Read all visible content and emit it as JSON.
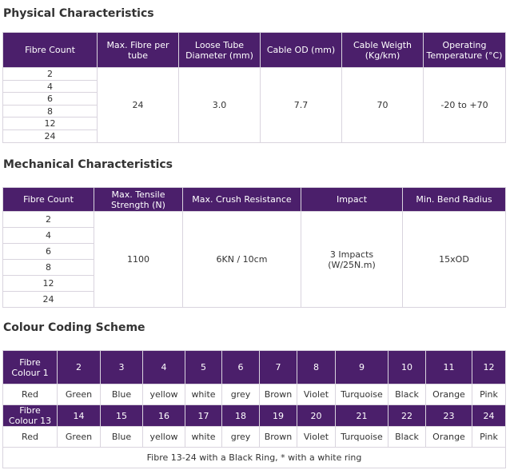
{
  "physical": {
    "title": "Physical Characteristics",
    "headers": [
      "Fibre Count",
      "Max. Fibre per tube",
      "Loose Tube Diameter (mm)",
      "Cable OD (mm)",
      "Cable Weigth (Kg/km)",
      "Operating Temperature (°C)"
    ],
    "fibre_counts": [
      "2",
      "4",
      "6",
      "8",
      "12",
      "24"
    ],
    "max_fibre_per_tube": "24",
    "loose_tube_diameter": "3.0",
    "cable_od": "7.7",
    "cable_weight": "70",
    "operating_temperature": "-20 to +70"
  },
  "mechanical": {
    "title": "Mechanical Characteristics",
    "headers": [
      "Fibre Count",
      "Max. Tensile Strength (N)",
      "Max. Crush Resistance",
      "Impact",
      "Min. Bend Radius"
    ],
    "fibre_counts": [
      "2",
      "4",
      "6",
      "8",
      "12",
      "24"
    ],
    "max_tensile_strength": "1100",
    "max_crush_resistance": "6KN / 10cm",
    "impact": "3 Impacts (W/25N.m)",
    "min_bend_radius": "15xOD"
  },
  "colour": {
    "title": "Colour Coding Scheme",
    "row1_label": "Fibre Colour 1",
    "row1_numbers": [
      "2",
      "3",
      "4",
      "5",
      "6",
      "7",
      "8",
      "9",
      "10",
      "11",
      "12"
    ],
    "colours": [
      "Red",
      "Green",
      "Blue",
      "yellow",
      "white",
      "grey",
      "Brown",
      "Violet",
      "Turquoise",
      "Black",
      "Orange",
      "Pink"
    ],
    "row2_label": "Fibre Colour 13",
    "row2_numbers": [
      "14",
      "15",
      "16",
      "17",
      "18",
      "19",
      "20",
      "21",
      "22",
      "23",
      "24"
    ],
    "note": "Fibre 13-24 with a Black Ring, * with a white ring"
  }
}
